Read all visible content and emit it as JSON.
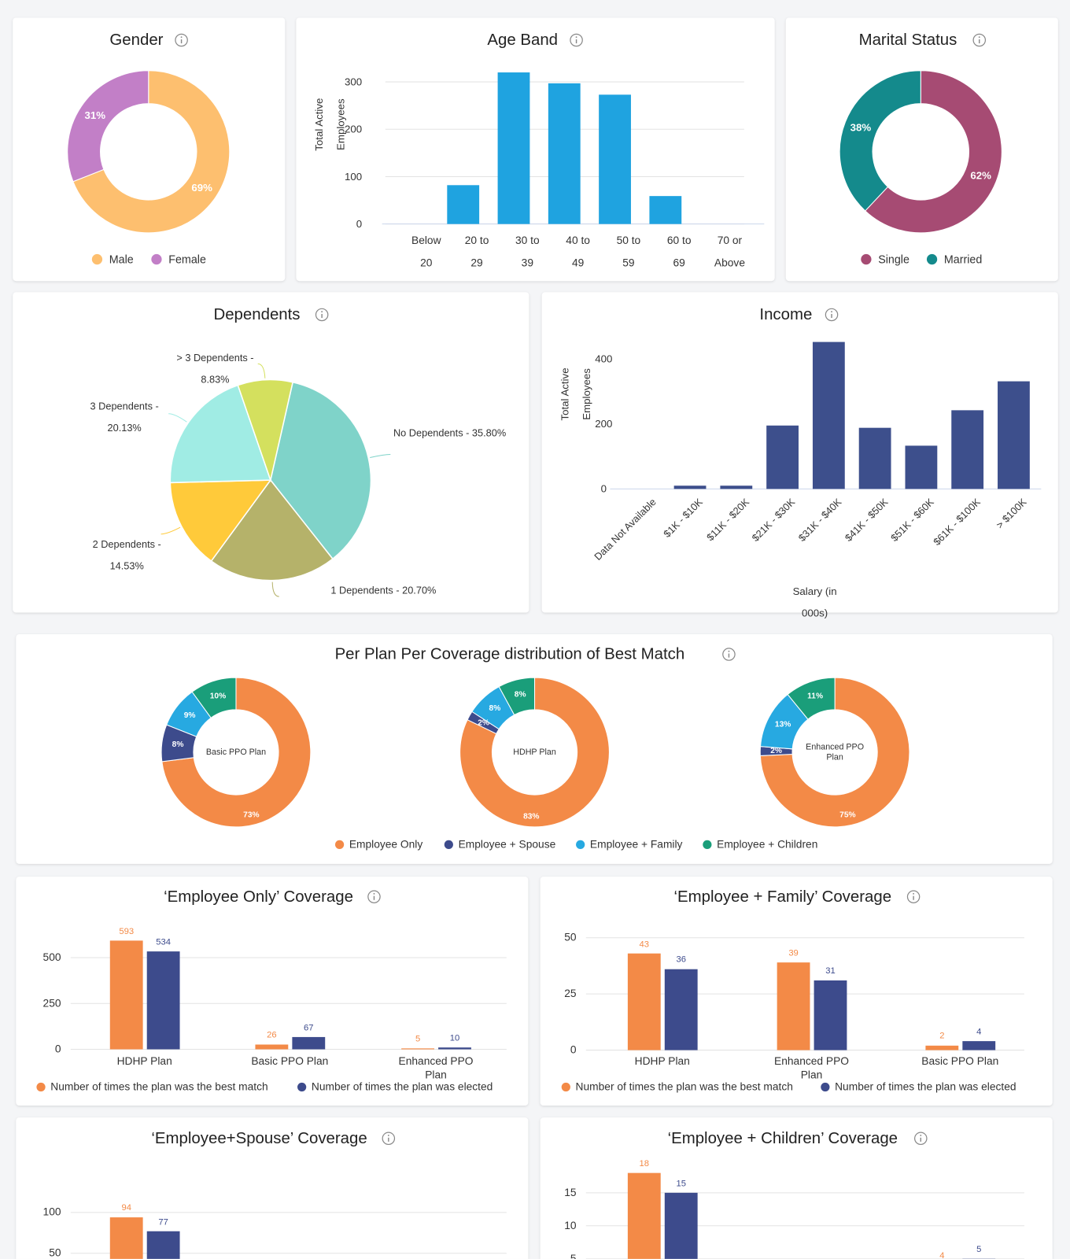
{
  "chart_data": [
    {
      "type": "donut",
      "title": "Gender",
      "categories": [
        "Male",
        "Female"
      ],
      "values": [
        69,
        31
      ],
      "value_labels": [
        "69%",
        "31%"
      ],
      "colors": [
        "#fdbf6f",
        "#c27fc7"
      ]
    },
    {
      "type": "bar",
      "title": "Age Band",
      "ylabel": "Total Active Employees",
      "categories": [
        "Below 20",
        "20 to 29",
        "30 to 39",
        "40 to 49",
        "50 to 59",
        "60 to 69",
        "70 or Above"
      ],
      "values": [
        0,
        82,
        320,
        297,
        273,
        59,
        0
      ],
      "color": "#1fa3e0",
      "ylim": [
        0,
        330
      ],
      "yticks": [
        0,
        100,
        200,
        300
      ],
      "grid": true
    },
    {
      "type": "donut",
      "title": "Marital Status",
      "categories": [
        "Single",
        "Married"
      ],
      "values": [
        62,
        38
      ],
      "value_labels": [
        "62%",
        "38%"
      ],
      "colors": [
        "#a64b73",
        "#148a8c"
      ]
    },
    {
      "type": "pie",
      "title": "Dependents",
      "values": [
        35.8,
        20.7,
        14.53,
        20.13,
        8.83
      ],
      "value_labels": [
        "No Dependents - 35.80%",
        "1 Dependents - 20.70%",
        "2 Dependents - 14.53%",
        "3 Dependents - 20.13%",
        "> 3 Dependents - 8.83%"
      ],
      "colors": [
        "#7fd3c9",
        "#b5b26a",
        "#ffca3a",
        "#a0ece4",
        "#d4e05e"
      ]
    },
    {
      "type": "bar",
      "title": "Income",
      "ylabel": "Total Active Employees",
      "xlabel": "Salary (in 000s)",
      "categories": [
        "Data Not Available",
        "$1K - $10K",
        "$11K - $20K",
        "$21K - $30K",
        "$31K - $40K",
        "$41K - $50K",
        "$51K - $60K",
        "$61K - $100K",
        "> $100K"
      ],
      "values": [
        0,
        10,
        10,
        195,
        452,
        188,
        133,
        242,
        331
      ],
      "color": "#3d4f8c",
      "ylim": [
        0,
        460
      ],
      "yticks": [
        0,
        200,
        400
      ],
      "grid": false
    },
    {
      "type": "multi_donut",
      "title": "Per Plan Per Coverage distribution of Best Match",
      "categories": [
        "Basic PPO Plan",
        "HDHP Plan",
        "Enhanced PPO Plan"
      ],
      "series": [
        {
          "name": "Employee Only",
          "color": "#f38a47",
          "values": [
            73,
            83,
            75
          ],
          "value_labels": [
            "73%",
            "83%",
            "75%"
          ]
        },
        {
          "name": "Employee + Spouse",
          "color": "#3d4b8c",
          "values": [
            8,
            2,
            2
          ],
          "value_labels": [
            "8%",
            "2%",
            "2%"
          ]
        },
        {
          "name": "Employee + Family",
          "color": "#27a9e1",
          "values": [
            9,
            8,
            13
          ],
          "value_labels": [
            "9%",
            "8%",
            "13%"
          ]
        },
        {
          "name": "Employee + Children",
          "color": "#1a9e7a",
          "values": [
            10,
            8,
            11
          ],
          "value_labels": [
            "10%",
            "8%",
            "11%"
          ]
        }
      ]
    },
    {
      "type": "grouped_bar",
      "title": "‘Employee Only’ Coverage",
      "categories": [
        "HDHP Plan",
        "Basic PPO Plan",
        "Enhanced PPO Plan"
      ],
      "series": [
        {
          "name": "Number of times the plan was the best match",
          "color": "#f38a47",
          "values": [
            593,
            26,
            5
          ]
        },
        {
          "name": "Number of times the plan was elected",
          "color": "#3d4b8c",
          "values": [
            534,
            67,
            10
          ]
        }
      ],
      "ylim": [
        0,
        600
      ],
      "yticks": [
        0,
        250,
        500
      ],
      "grid": true
    },
    {
      "type": "grouped_bar",
      "title": "‘Employee + Family’ Coverage",
      "categories": [
        "HDHP Plan",
        "Enhanced PPO Plan",
        "Basic PPO Plan"
      ],
      "series": [
        {
          "name": "Number of times the plan was the best match",
          "color": "#f38a47",
          "values": [
            43,
            39,
            2
          ]
        },
        {
          "name": "Number of times the plan was elected",
          "color": "#3d4b8c",
          "values": [
            36,
            31,
            4
          ]
        }
      ],
      "ylim": [
        0,
        50
      ],
      "yticks": [
        0,
        25,
        50
      ],
      "grid": true
    },
    {
      "type": "grouped_bar",
      "title": "‘Employee+Spouse’ Coverage",
      "categories": [
        null,
        null,
        null
      ],
      "series": [
        {
          "color": "#f38a47",
          "values": [
            94,
            null,
            null
          ]
        },
        {
          "color": "#3d4b8c",
          "values": [
            77,
            null,
            null
          ]
        }
      ],
      "ylim": [
        0,
        110
      ],
      "yticks": [
        50,
        100
      ],
      "grid": true
    },
    {
      "type": "grouped_bar",
      "title": "‘Employee + Children’ Coverage",
      "categories": [
        null,
        null,
        null
      ],
      "series": [
        {
          "color": "#f38a47",
          "values": [
            18,
            null,
            4
          ]
        },
        {
          "color": "#3d4b8c",
          "values": [
            15,
            null,
            5
          ]
        }
      ],
      "ylim": [
        0,
        18
      ],
      "yticks": [
        5,
        10,
        15
      ],
      "grid": true
    }
  ]
}
